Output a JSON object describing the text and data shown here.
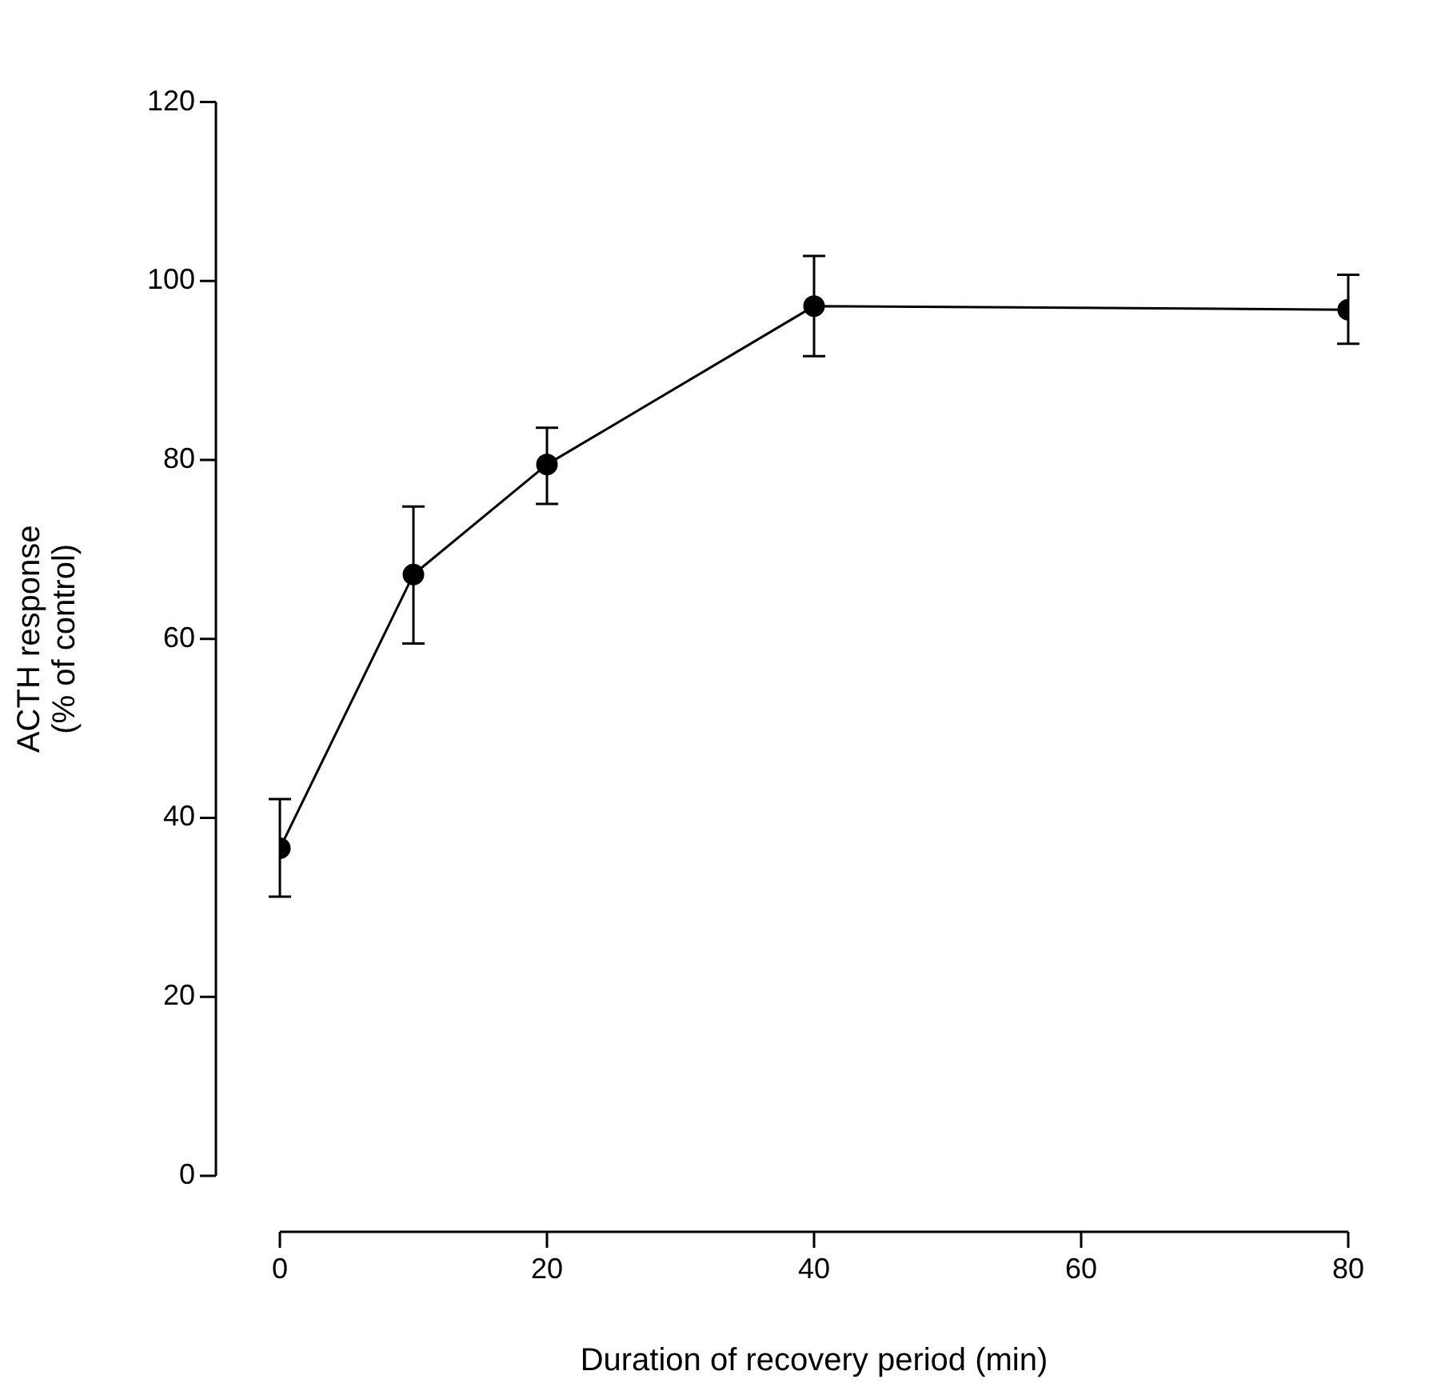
{
  "chart_data": {
    "type": "line",
    "xlabel": "Duration of recovery period (min)",
    "ylabel": "ACTH response\n(% of control)",
    "x": [
      0,
      10,
      20,
      40,
      80
    ],
    "series": [
      {
        "color": "#000000",
        "values": [
          36.6,
          67.2,
          79.5,
          97.2,
          96.8
        ],
        "errors": [
          [
            31.2,
            42.1
          ],
          [
            59.5,
            74.8
          ],
          [
            75.1,
            83.6
          ],
          [
            91.6,
            102.8
          ],
          [
            93.0,
            100.7
          ]
        ]
      }
    ],
    "xlim": [
      0,
      80
    ],
    "xticks": [
      0,
      20,
      40,
      60,
      80
    ],
    "ylim": [
      0,
      120
    ],
    "yticks": [
      0,
      20,
      40,
      60,
      80,
      100,
      120
    ],
    "marker": "circle",
    "line_style": "solid",
    "legend": false
  }
}
